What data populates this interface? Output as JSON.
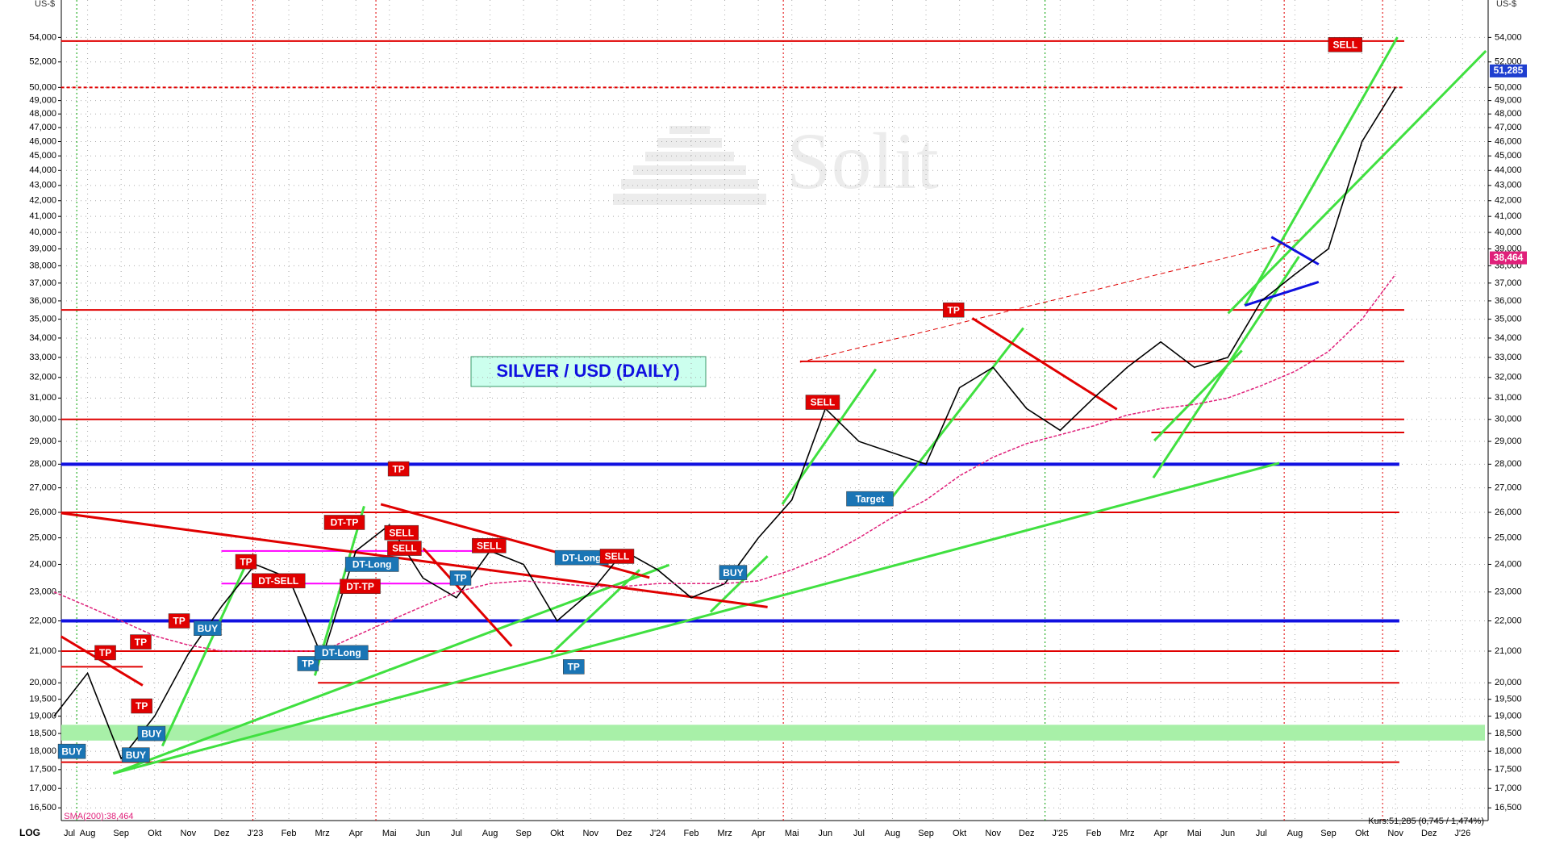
{
  "chart_data": {
    "type": "line",
    "title": "SILVER / USD  (DAILY)",
    "y_label": "US-$",
    "scale_label": "LOG",
    "watermark": "Solit",
    "footer_quote": "Kurs:51,285 (0,745 / 1,474%)",
    "log_scale": true,
    "grid": true,
    "categories": [
      "Jul",
      "Aug",
      "Sep",
      "Okt",
      "Nov",
      "Dez",
      "J'23",
      "Feb",
      "Mrz",
      "Apr",
      "Mai",
      "Jun",
      "Jul",
      "Aug",
      "Sep",
      "Okt",
      "Nov",
      "Dez",
      "J'24",
      "Feb",
      "Mrz",
      "Apr",
      "Mai",
      "Jun",
      "Jul",
      "Aug",
      "Sep",
      "Okt",
      "Nov",
      "Dez",
      "J'25",
      "Feb",
      "Mrz",
      "Apr",
      "Mai",
      "Jun",
      "Jul",
      "Aug",
      "Sep",
      "Okt",
      "Nov",
      "Dez",
      "J'26"
    ],
    "series": [
      {
        "color": "#000000",
        "values": [
          19000,
          20300,
          17800,
          19000,
          20900,
          22500,
          24000,
          23500,
          20800,
          24500,
          25500,
          23500,
          22800,
          24500,
          24000,
          22000,
          23000,
          24500,
          23800,
          22800,
          23300,
          25000,
          26500,
          30500,
          29000,
          28500,
          28000,
          31500,
          32500,
          30500,
          29500,
          31000,
          32500,
          33800,
          32500,
          33000,
          36000,
          37500,
          39000,
          46000,
          50000,
          null,
          null
        ],
        "last_label": {
          "value": 51285,
          "label": "51,285"
        },
        "tag_color": "#1f3fd0"
      },
      {
        "name": "SMA(200):38,464",
        "color": "#e0207a",
        "dashed": true,
        "values": [
          23000,
          22500,
          22000,
          21500,
          21200,
          21000,
          21000,
          21000,
          21000,
          21500,
          22000,
          22500,
          23000,
          23300,
          23400,
          23300,
          23200,
          23200,
          23300,
          23300,
          23300,
          23400,
          23800,
          24300,
          25000,
          25800,
          26500,
          27500,
          28300,
          28900,
          29300,
          29700,
          30200,
          30500,
          30700,
          31000,
          31600,
          32300,
          33300,
          35000,
          37500,
          null,
          null
        ],
        "last_label": {
          "value": 38464,
          "label": "38,464"
        },
        "tag_color": "#e0207a"
      }
    ],
    "ylim": [
      16180,
      57200
    ],
    "yticks": [
      {
        "value": 16500,
        "label": "16,500"
      },
      {
        "value": 17000,
        "label": "17,000"
      },
      {
        "value": 17500,
        "label": "17,500"
      },
      {
        "value": 18000,
        "label": "18,000"
      },
      {
        "value": 18500,
        "label": "18,500"
      },
      {
        "value": 19000,
        "label": "19,000"
      },
      {
        "value": 19500,
        "label": "19,500"
      },
      {
        "value": 20000,
        "label": "20,000"
      },
      {
        "value": 21000,
        "label": "21,000"
      },
      {
        "value": 22000,
        "label": "22,000"
      },
      {
        "value": 23000,
        "label": "23,000"
      },
      {
        "value": 24000,
        "label": "24,000"
      },
      {
        "value": 25000,
        "label": "25,000"
      },
      {
        "value": 26000,
        "label": "26,000"
      },
      {
        "value": 27000,
        "label": "27,000"
      },
      {
        "value": 28000,
        "label": "28,000"
      },
      {
        "value": 29000,
        "label": "29,000"
      },
      {
        "value": 30000,
        "label": "30,000"
      },
      {
        "value": 31000,
        "label": "31,000"
      },
      {
        "value": 32000,
        "label": "32,000"
      },
      {
        "value": 33000,
        "label": "33,000"
      },
      {
        "value": 34000,
        "label": "34,000"
      },
      {
        "value": 35000,
        "label": "35,000"
      },
      {
        "value": 36000,
        "label": "36,000"
      },
      {
        "value": 37000,
        "label": "37,000"
      },
      {
        "value": 38000,
        "label": "38,000"
      },
      {
        "value": 39000,
        "label": "39,000"
      },
      {
        "value": 40000,
        "label": "40,000"
      },
      {
        "value": 41000,
        "label": "41,000"
      },
      {
        "value": 42000,
        "label": "42,000"
      },
      {
        "value": 43000,
        "label": "43,000"
      },
      {
        "value": 44000,
        "label": "44,000"
      },
      {
        "value": 45000,
        "label": "45,000"
      },
      {
        "value": 46000,
        "label": "46,000"
      },
      {
        "value": 47000,
        "label": "47,000"
      },
      {
        "value": 48000,
        "label": "48,000"
      },
      {
        "value": 49000,
        "label": "49,000"
      },
      {
        "value": 50000,
        "label": "50,000"
      },
      {
        "value": 52000,
        "label": "52,000"
      },
      {
        "value": 54000,
        "label": "54,000"
      }
    ],
    "levels": [
      {
        "value": 53700,
        "color": "#e00000"
      },
      {
        "value": 50000,
        "color": "#e00000",
        "dashed": true
      },
      {
        "value": 35500,
        "color": "#e00000"
      },
      {
        "value": 32800,
        "color": "#e00000"
      },
      {
        "value": 30000,
        "color": "#e00000"
      },
      {
        "value": 29400,
        "color": "#e00000"
      },
      {
        "value": 28000,
        "color": "#1010e0",
        "thick": true
      },
      {
        "value": 26000,
        "color": "#e00000"
      },
      {
        "value": 22000,
        "color": "#1010e0",
        "thick": true
      },
      {
        "value": 21000,
        "color": "#e00000"
      },
      {
        "value": 20000,
        "color": "#e00000"
      },
      {
        "value": 20500,
        "color": "#e00000"
      },
      {
        "value": 17700,
        "color": "#e00000"
      },
      {
        "value": 24500,
        "color": "#ff00ff"
      },
      {
        "value": 23300,
        "color": "#ff00ff"
      }
    ],
    "band": {
      "values": [
        18300,
        18750
      ],
      "color": "#a8f0a8"
    },
    "signals": [
      {
        "text": "BUY",
        "value": 18000,
        "color": "#1a75b5"
      },
      {
        "text": "BUY",
        "value": 17900,
        "color": "#1a75b5"
      },
      {
        "text": "TP",
        "value": 20950,
        "color": "#e00000"
      },
      {
        "text": "TP",
        "value": 21300,
        "color": "#e00000"
      },
      {
        "text": "TP",
        "value": 19300,
        "color": "#e00000"
      },
      {
        "text": "BUY",
        "value": 18500,
        "color": "#1a75b5"
      },
      {
        "text": "TP",
        "value": 22000,
        "color": "#e00000"
      },
      {
        "text": "BUY",
        "value": 21750,
        "color": "#1a75b5"
      },
      {
        "text": "TP",
        "value": 24100,
        "color": "#e00000"
      },
      {
        "text": "DT-SELL",
        "value": 23400,
        "color": "#e00000"
      },
      {
        "text": "TP",
        "value": 20600,
        "color": "#1a75b5"
      },
      {
        "text": "DT-Long",
        "value": 20950,
        "color": "#1a75b5"
      },
      {
        "text": "DT-TP",
        "value": 25600,
        "color": "#e00000"
      },
      {
        "text": "DT-Long",
        "value": 24000,
        "color": "#1a75b5"
      },
      {
        "text": "DT-TP",
        "value": 23200,
        "color": "#e00000"
      },
      {
        "text": "SELL",
        "value": 25200,
        "color": "#e00000"
      },
      {
        "text": "SELL",
        "value": 24600,
        "color": "#e00000"
      },
      {
        "text": "TP",
        "value": 27800,
        "color": "#e00000"
      },
      {
        "text": "TP",
        "value": 23500,
        "color": "#1a75b5"
      },
      {
        "text": "SELL",
        "value": 24700,
        "color": "#e00000"
      },
      {
        "text": "DT-Long",
        "value": 24250,
        "color": "#1a75b5"
      },
      {
        "text": "SELL",
        "value": 24300,
        "color": "#e00000"
      },
      {
        "text": "TP",
        "value": 20500,
        "color": "#1a75b5"
      },
      {
        "text": "BUY",
        "value": 23700,
        "color": "#1a75b5"
      },
      {
        "text": "SELL",
        "value": 30800,
        "color": "#e00000"
      },
      {
        "text": "Target",
        "value": 26550,
        "color": "#1a75b5"
      },
      {
        "text": "TP",
        "value": 35500,
        "color": "#e00000"
      },
      {
        "text": "SELL",
        "value": 53400,
        "color": "#e00000"
      }
    ]
  }
}
